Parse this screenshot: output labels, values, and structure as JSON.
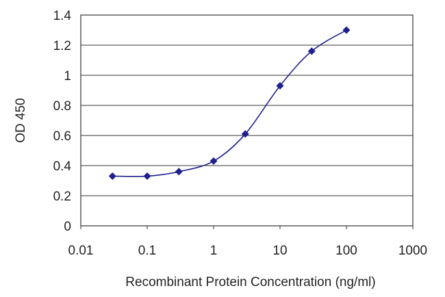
{
  "chart_data": {
    "type": "line",
    "title": "",
    "xlabel": "Recombinant Protein Concentration (ng/ml)",
    "ylabel": "OD 450",
    "x_scale": "log",
    "xlim": [
      0.01,
      1000
    ],
    "ylim": [
      0,
      1.4
    ],
    "x_ticks": [
      0.01,
      0.1,
      1,
      10,
      100,
      1000
    ],
    "x_tick_labels": [
      "0.01",
      "0.1",
      "1",
      "10",
      "100",
      "1000"
    ],
    "y_ticks": [
      0,
      0.2,
      0.4,
      0.6,
      0.8,
      1,
      1.2,
      1.4
    ],
    "y_tick_labels": [
      "0",
      "0.2",
      "0.4",
      "0.6",
      "0.8",
      "1",
      "1.2",
      "1.4"
    ],
    "grid": "horizontal",
    "series": [
      {
        "color": "#1f1f8f",
        "points": [
          {
            "x": 0.03,
            "y": 0.33
          },
          {
            "x": 0.1,
            "y": 0.33
          },
          {
            "x": 0.3,
            "y": 0.36
          },
          {
            "x": 1,
            "y": 0.43
          },
          {
            "x": 3,
            "y": 0.61
          },
          {
            "x": 10,
            "y": 0.93
          },
          {
            "x": 30,
            "y": 1.16
          },
          {
            "x": 100,
            "y": 1.3
          }
        ]
      }
    ]
  }
}
